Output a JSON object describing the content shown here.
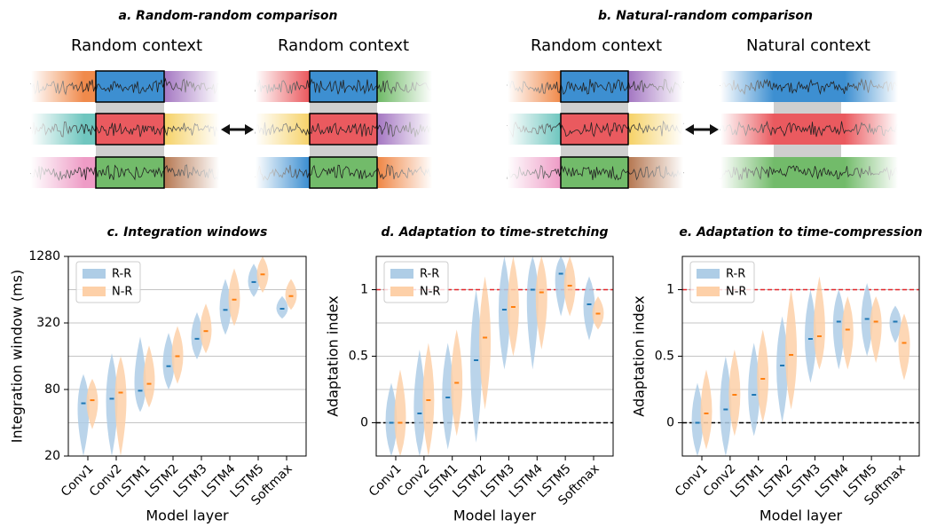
{
  "panels": [
    {
      "title": "a. Random-random comparison",
      "contexts": [
        "Random context",
        "Random context"
      ]
    },
    {
      "title": "b. Natural-random comparison",
      "contexts": [
        "Random context",
        "Natural context"
      ]
    }
  ],
  "chart_data": [
    {
      "type": "violin",
      "title": "c. Integration windows",
      "xlabel": "Model layer",
      "ylabel": "Integration window (ms)",
      "categories": [
        "Conv1",
        "Conv2",
        "LSTM1",
        "LSTM2",
        "LSTM3",
        "LSTM4",
        "LSTM5",
        "Softmax"
      ],
      "log_scale": true,
      "ylim": [
        20,
        1280
      ],
      "yticks": [
        20,
        80,
        320,
        1280
      ],
      "ygrid": [
        40,
        160,
        640
      ],
      "grid": true,
      "legend": "upper left",
      "series": [
        {
          "name": "R-R",
          "color": "#aecde6",
          "median_color": "#1f77b4",
          "values": [
            60,
            66,
            78,
            130,
            230,
            420,
            750,
            430
          ],
          "ranges": [
            [
              20,
              110
            ],
            [
              20,
              170
            ],
            [
              50,
              240
            ],
            [
              80,
              260
            ],
            [
              150,
              400
            ],
            [
              250,
              800
            ],
            [
              550,
              1100
            ],
            [
              350,
              560
            ]
          ]
        },
        {
          "name": "N-R",
          "color": "#fdd0a8",
          "median_color": "#ff7f0e",
          "values": [
            64,
            75,
            90,
            160,
            270,
            520,
            880,
            560
          ],
          "ranges": [
            [
              35,
              100
            ],
            [
              20,
              160
            ],
            [
              55,
              200
            ],
            [
              90,
              300
            ],
            [
              170,
              480
            ],
            [
              300,
              1000
            ],
            [
              600,
              1280
            ],
            [
              420,
              800
            ]
          ]
        }
      ]
    },
    {
      "type": "violin",
      "title": "d. Adaptation to time-stretching",
      "xlabel": "Model layer",
      "ylabel": "Adaptation index",
      "categories": [
        "Conv1",
        "Conv2",
        "LSTM1",
        "LSTM2",
        "LSTM3",
        "LSTM4",
        "LSTM5",
        "Softmax"
      ],
      "ylim": [
        -0.25,
        1.25
      ],
      "yticks": [
        0,
        0.5,
        1
      ],
      "ygrid": [
        0.25,
        0.75
      ],
      "grid": true,
      "legend": "upper left",
      "reference_lines": [
        {
          "value": 1,
          "color": "#e3262b"
        },
        {
          "value": 0,
          "color": "#000000"
        }
      ],
      "series": [
        {
          "name": "R-R",
          "color": "#aecde6",
          "median_color": "#1f77b4",
          "values": [
            0,
            0.07,
            0.19,
            0.47,
            0.85,
            1.0,
            1.12,
            0.89
          ],
          "ranges": [
            [
              -0.25,
              0.3
            ],
            [
              -0.25,
              0.55
            ],
            [
              -0.2,
              0.6
            ],
            [
              -0.15,
              1.0
            ],
            [
              0.4,
              1.25
            ],
            [
              0.4,
              1.25
            ],
            [
              0.8,
              1.25
            ],
            [
              0.62,
              1.1
            ]
          ]
        },
        {
          "name": "N-R",
          "color": "#fdd0a8",
          "median_color": "#ff7f0e",
          "values": [
            0,
            0.17,
            0.3,
            0.64,
            0.87,
            0.98,
            1.03,
            0.82
          ],
          "ranges": [
            [
              -0.25,
              0.4
            ],
            [
              -0.25,
              0.6
            ],
            [
              -0.1,
              0.7
            ],
            [
              0.1,
              1.1
            ],
            [
              0.5,
              1.25
            ],
            [
              0.55,
              1.25
            ],
            [
              0.8,
              1.25
            ],
            [
              0.7,
              0.95
            ]
          ]
        }
      ]
    },
    {
      "type": "violin",
      "title": "e. Adaptation to time-compression",
      "xlabel": "Model layer",
      "ylabel": "Adaptation index",
      "categories": [
        "Conv1",
        "Conv2",
        "LSTM1",
        "LSTM2",
        "LSTM3",
        "LSTM4",
        "LSTM5",
        "Softmax"
      ],
      "ylim": [
        -0.25,
        1.25
      ],
      "yticks": [
        0,
        0.5,
        1
      ],
      "ygrid": [
        0.25,
        0.75
      ],
      "grid": true,
      "legend": "upper left",
      "reference_lines": [
        {
          "value": 1,
          "color": "#e3262b"
        },
        {
          "value": 0,
          "color": "#000000"
        }
      ],
      "series": [
        {
          "name": "R-R",
          "color": "#aecde6",
          "median_color": "#1f77b4",
          "values": [
            0,
            0.1,
            0.21,
            0.43,
            0.63,
            0.76,
            0.78,
            0.76
          ],
          "ranges": [
            [
              -0.25,
              0.3
            ],
            [
              -0.25,
              0.5
            ],
            [
              -0.1,
              0.6
            ],
            [
              0.0,
              0.8
            ],
            [
              0.3,
              1.0
            ],
            [
              0.4,
              1.0
            ],
            [
              0.5,
              1.05
            ],
            [
              0.6,
              0.88
            ]
          ]
        },
        {
          "name": "N-R",
          "color": "#fdd0a8",
          "median_color": "#ff7f0e",
          "values": [
            0.07,
            0.21,
            0.33,
            0.51,
            0.65,
            0.7,
            0.76,
            0.6
          ],
          "ranges": [
            [
              -0.2,
              0.4
            ],
            [
              -0.1,
              0.55
            ],
            [
              0.0,
              0.7
            ],
            [
              0.1,
              1.0
            ],
            [
              0.4,
              1.1
            ],
            [
              0.4,
              0.95
            ],
            [
              0.45,
              0.95
            ],
            [
              0.32,
              0.82
            ]
          ]
        }
      ]
    }
  ]
}
